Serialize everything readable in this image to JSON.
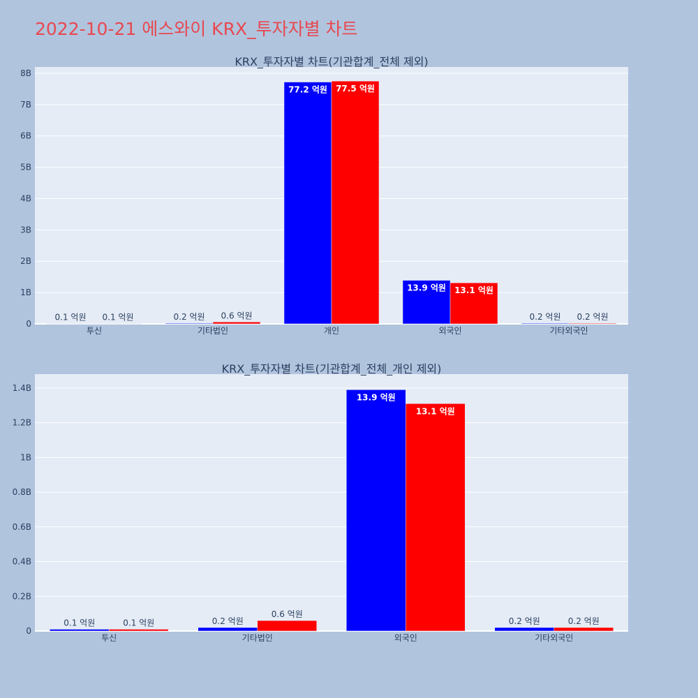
{
  "page": {
    "title": "2022-10-21 에스와이 KRX_투자자별 차트",
    "title_color": "#e8484f",
    "background": "#b0c4de",
    "plot_background": "#e5ecf6"
  },
  "chart_data": [
    {
      "type": "bar",
      "title": "KRX_투자자별 차트(기관합계_전체 제외)",
      "categories": [
        "투신",
        "기타법인",
        "개인",
        "외국인",
        "기타외국인"
      ],
      "series": [
        {
          "color": "#0000ff",
          "values": [
            10000000,
            20000000,
            7720000000,
            1390000000,
            20000000
          ],
          "labels": [
            "0.1 억원",
            "0.2 억원",
            "77.2 억원",
            "13.9 억원",
            "0.2 억원"
          ]
        },
        {
          "color": "#ff0000",
          "values": [
            10000000,
            60000000,
            7750000000,
            1310000000,
            20000000
          ],
          "labels": [
            "0.1 억원",
            "0.6 억원",
            "77.5 억원",
            "13.1 억원",
            "0.2 억원"
          ]
        }
      ],
      "ylim": [
        0,
        8200000000
      ],
      "yticks": [
        0,
        1000000000,
        2000000000,
        3000000000,
        4000000000,
        5000000000,
        6000000000,
        7000000000,
        8000000000
      ],
      "ytick_labels": [
        "0",
        "1B",
        "2B",
        "3B",
        "4B",
        "5B",
        "6B",
        "7B",
        "8B"
      ],
      "grid": true
    },
    {
      "type": "bar",
      "title": "KRX_투자자별 차트(기관합계_전체_개인 제외)",
      "categories": [
        "투신",
        "기타법인",
        "외국인",
        "기타외국인"
      ],
      "series": [
        {
          "color": "#0000ff",
          "values": [
            10000000,
            20000000,
            1390000000,
            20000000
          ],
          "labels": [
            "0.1 억원",
            "0.2 억원",
            "13.9 억원",
            "0.2 억원"
          ]
        },
        {
          "color": "#ff0000",
          "values": [
            10000000,
            60000000,
            1310000000,
            20000000
          ],
          "labels": [
            "0.1 억원",
            "0.6 억원",
            "13.1 억원",
            "0.2 억원"
          ]
        }
      ],
      "ylim": [
        0,
        1480000000
      ],
      "yticks": [
        0,
        200000000,
        400000000,
        600000000,
        800000000,
        1000000000,
        1200000000,
        1400000000
      ],
      "ytick_labels": [
        "0",
        "0.2B",
        "0.4B",
        "0.6B",
        "0.8B",
        "1B",
        "1.2B",
        "1.4B"
      ],
      "grid": true
    }
  ]
}
